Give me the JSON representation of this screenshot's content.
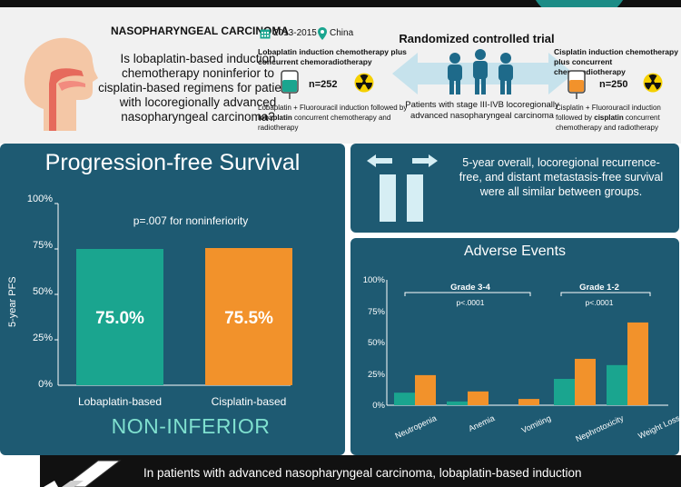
{
  "header": {
    "condition_title": "NASOPHARYNGEAL CARCINOMA",
    "question": "Is lobaplatin-based induction chemotherapy noninferior to cisplatin-based regimens for patients with locoregionally advanced nasopharyngeal carcinoma?",
    "years": "2013-2015",
    "location": "China",
    "trial_type": "Randomized controlled trial",
    "patients": "Patients with stage III-IVB locoregionally advanced nasopharyngeal carcinoma",
    "left_arm": {
      "title": "Lobaplatin induction chemotherapy plus concurrent chemoradiotherapy",
      "n": "n=252",
      "desc_pre": "Lobaplatin + Fluorouracil induction followed by ",
      "desc_bold": "lobaplatin",
      "desc_post": " concurrent chemotherapy and radiotherapy"
    },
    "right_arm": {
      "title": "Cisplatin induction chemotherapy plus concurrent chemoradiotherapy",
      "n": "n=250",
      "desc_pre": "Cisplatin + Fluorouracil induction followed by ",
      "desc_bold": "cisplatin",
      "desc_post": " concurrent chemotherapy and radiotherapy"
    }
  },
  "pfs": {
    "title": "Progression-free Survival",
    "p_value": "p=.007 for noninferiority",
    "ylabel": "5-year PFS",
    "yticks": [
      "0%",
      "25%",
      "50%",
      "75%",
      "100%"
    ],
    "verdict": "NON-INFERIOR"
  },
  "pfs_chart": {
    "type": "bar",
    "categories": [
      "Lobaplatin-based",
      "Cisplatin-based"
    ],
    "values": [
      75.0,
      75.5
    ],
    "value_labels": [
      "75.0%",
      "75.5%"
    ],
    "ylim": [
      0,
      100
    ],
    "colors": [
      "#1aa58f",
      "#f2922b"
    ]
  },
  "similar": {
    "text": "5-year overall, locoregional recurrence-free, and distant metastasis-free survival were all similar between groups."
  },
  "adverse": {
    "title": "Adverse Events",
    "yticks": [
      "0%",
      "25%",
      "50%",
      "75%",
      "100%"
    ],
    "grade_3_4": "Grade 3-4",
    "grade_3_4_p": "p<.0001",
    "grade_1_2": "Grade 1-2",
    "grade_1_2_p": "p<.0001"
  },
  "chart_data": {
    "type": "bar",
    "categories": [
      "Neutropenia",
      "Anemia",
      "Vomiting",
      "Nephrotoxicity",
      "Weight Loss"
    ],
    "series": [
      {
        "values": [
          10,
          3,
          0,
          21,
          32
        ]
      },
      {
        "values": [
          24,
          11,
          5,
          37,
          66
        ]
      }
    ],
    "ylim": [
      0,
      100
    ],
    "colors": [
      "#1aa58f",
      "#f2922b"
    ]
  },
  "conclusion": {
    "text": "In patients with advanced nasopharyngeal carcinoma, lobaplatin-based induction"
  }
}
